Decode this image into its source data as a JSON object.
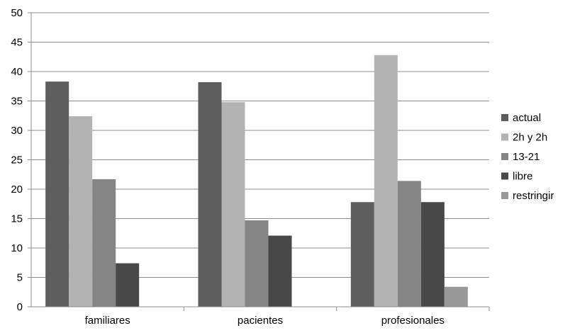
{
  "chart_data": {
    "type": "bar",
    "categories": [
      "familiares",
      "pacientes",
      "profesionales"
    ],
    "series": [
      {
        "name": "actual",
        "color": "#5e5e5e",
        "values": [
          38.3,
          38.2,
          17.8
        ]
      },
      {
        "name": "2h y 2h",
        "color": "#b3b3b3",
        "values": [
          32.4,
          34.8,
          42.8
        ]
      },
      {
        "name": "13-21",
        "color": "#858585",
        "values": [
          21.7,
          14.7,
          21.4
        ]
      },
      {
        "name": "libre",
        "color": "#484848",
        "values": [
          7.4,
          12.1,
          17.8
        ]
      },
      {
        "name": "restringir",
        "color": "#999999",
        "values": [
          0,
          0,
          3.4
        ]
      }
    ],
    "ylim": [
      0,
      50
    ],
    "yticks": [
      "0",
      "5",
      "10",
      "15",
      "20",
      "25",
      "30",
      "35",
      "40",
      "45",
      "50"
    ],
    "grid": true,
    "legend_position": "right"
  }
}
